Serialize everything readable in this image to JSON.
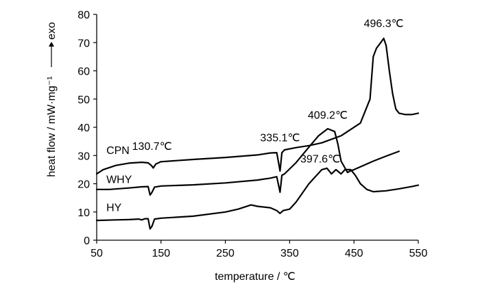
{
  "chart_data": {
    "type": "line",
    "title": "",
    "xlabel": "temperature / ℃",
    "ylabel": "heat flow / mW·mg⁻¹",
    "ylabel_arrow": "exo",
    "xlim": [
      50,
      550
    ],
    "ylim": [
      0,
      80
    ],
    "xticks": [
      "50",
      "150",
      "250",
      "350",
      "450",
      "550"
    ],
    "yticks": [
      "0",
      "10",
      "20",
      "30",
      "40",
      "50",
      "60",
      "70",
      "80"
    ],
    "grid": false,
    "colors": {
      "line": "#000000",
      "axis": "#000000"
    },
    "series": [
      {
        "name": "CPN",
        "x": [
          50,
          60,
          80,
          100,
          120,
          130,
          135,
          138,
          142,
          150,
          200,
          250,
          300,
          320,
          330,
          335.1,
          338,
          342,
          360,
          380,
          400,
          430,
          460,
          475,
          480,
          485,
          490,
          496.3,
          500,
          505,
          510,
          515,
          520,
          530,
          540,
          550
        ],
        "y": [
          23.5,
          25.0,
          26.5,
          27.3,
          27.6,
          27.4,
          26.5,
          25.6,
          27.0,
          27.8,
          28.6,
          29.3,
          30.2,
          30.9,
          31.0,
          24.5,
          31.0,
          32.0,
          32.8,
          33.5,
          34.5,
          37.0,
          41.5,
          50.0,
          65.0,
          68.0,
          69.5,
          71.5,
          69.0,
          60.0,
          52.0,
          46.5,
          45.0,
          44.5,
          44.5,
          45.0
        ]
      },
      {
        "name": "WHY",
        "x": [
          50,
          70,
          100,
          120,
          130,
          133,
          136,
          140,
          150,
          200,
          250,
          300,
          320,
          330,
          335.1,
          338,
          342,
          360,
          380,
          395,
          409.2,
          420,
          425,
          430,
          440,
          445,
          450,
          460,
          480,
          500,
          520
        ],
        "y": [
          18.0,
          18.0,
          18.5,
          18.9,
          19.0,
          16.0,
          17.0,
          18.8,
          19.2,
          19.6,
          20.3,
          21.3,
          22.0,
          22.5,
          17.0,
          23.0,
          23.5,
          27.5,
          33.0,
          37.0,
          39.5,
          38.5,
          34.0,
          28.0,
          24.0,
          24.6,
          25.0,
          26.0,
          28.0,
          29.8,
          31.5
        ]
      },
      {
        "name": "HY",
        "x": [
          50,
          80,
          100,
          115,
          120,
          125,
          130,
          133,
          136,
          140,
          150,
          200,
          250,
          270,
          290,
          300,
          320,
          330,
          335,
          340,
          350,
          360,
          380,
          400,
          408,
          415,
          422,
          430,
          436,
          445,
          452,
          460,
          470,
          480,
          500,
          520,
          540,
          550
        ],
        "y": [
          7.0,
          7.2,
          7.3,
          7.5,
          7.2,
          7.6,
          7.6,
          4.0,
          5.0,
          7.5,
          7.8,
          8.5,
          10.0,
          11.0,
          12.5,
          12.0,
          11.5,
          10.5,
          9.5,
          10.5,
          11.0,
          13.5,
          20.0,
          25.0,
          25.5,
          23.5,
          25.0,
          23.5,
          25.0,
          25.0,
          23.0,
          20.0,
          18.0,
          17.2,
          17.5,
          18.2,
          19.0,
          19.5
        ]
      }
    ],
    "series_labels": [
      {
        "text": "CPN",
        "x": 65,
        "y": 30.5
      },
      {
        "text": "WHY",
        "x": 65,
        "y": 20.2
      },
      {
        "text": "HY",
        "x": 65,
        "y": 10.3
      }
    ],
    "annotations": [
      {
        "text": "496.3℃",
        "x": 496.3,
        "y": 75.5
      },
      {
        "text": "409.2℃",
        "x": 409.2,
        "y": 43.0
      },
      {
        "text": "335.1℃",
        "x": 335.1,
        "y": 35.0
      },
      {
        "text": "130.7℃",
        "x": 136,
        "y": 32.0
      },
      {
        "text": "397.6℃",
        "x": 397.6,
        "y": 27.5
      }
    ]
  }
}
